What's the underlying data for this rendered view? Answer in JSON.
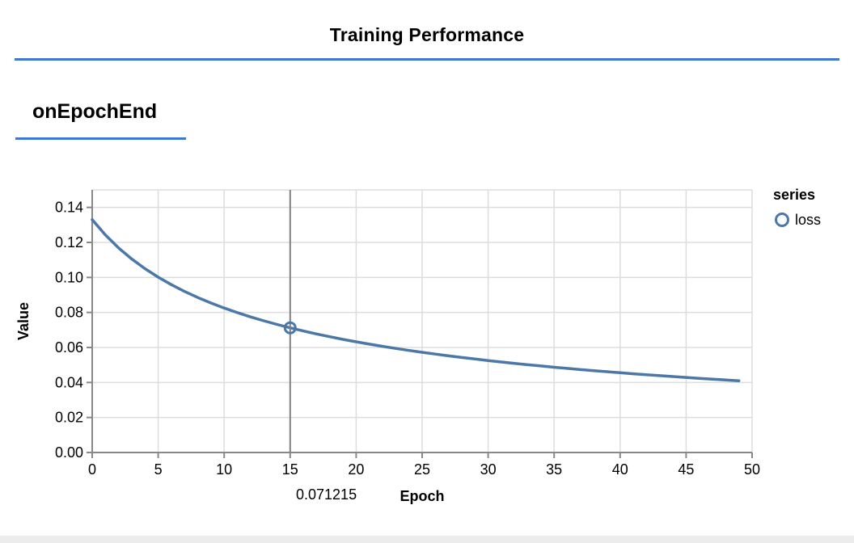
{
  "page": {
    "title": "Training Performance",
    "section_title": "onEpochEnd",
    "accent_color": "#3f76d6"
  },
  "chart_data": {
    "type": "line",
    "title": "Training Performance",
    "panel": "onEpochEnd",
    "xlabel": "Epoch",
    "ylabel": "Value",
    "xlim": [
      0,
      50
    ],
    "ylim": [
      0,
      0.15
    ],
    "x_ticks": [
      0,
      5,
      10,
      15,
      20,
      25,
      30,
      35,
      40,
      45,
      50
    ],
    "y_ticks": [
      0,
      0.02,
      0.04,
      0.06,
      0.08,
      0.1,
      0.12,
      0.14
    ],
    "grid": true,
    "legend_position": "right",
    "legend": {
      "title": "series",
      "items": [
        {
          "label": "loss",
          "color": "#4c78a8",
          "symbol": "circle-outline"
        }
      ]
    },
    "colors": {
      "line": "#4c78a8",
      "grid": "#dddddd",
      "axis": "#888888",
      "crosshair": "#808080",
      "label": "#000000"
    },
    "series": [
      {
        "name": "loss",
        "color": "#4c78a8",
        "x": [
          0,
          1,
          2,
          3,
          4,
          5,
          6,
          7,
          8,
          9,
          10,
          11,
          12,
          13,
          14,
          15,
          16,
          17,
          18,
          19,
          20,
          21,
          22,
          23,
          24,
          25,
          26,
          27,
          28,
          29,
          30,
          31,
          32,
          33,
          34,
          35,
          36,
          37,
          38,
          39,
          40,
          41,
          42,
          43,
          44,
          45,
          46,
          47,
          48,
          49
        ],
        "y": [
          0.132995,
          0.124242,
          0.116853,
          0.110512,
          0.105001,
          0.100154,
          0.095852,
          0.092002,
          0.088532,
          0.085384,
          0.082514,
          0.079883,
          0.077461,
          0.075221,
          0.073143,
          0.071215,
          0.069404,
          0.067714,
          0.066128,
          0.064635,
          0.063227,
          0.061898,
          0.060637,
          0.059443,
          0.058308,
          0.057228,
          0.056199,
          0.055216,
          0.054278,
          0.05338,
          0.05252,
          0.051695,
          0.050904,
          0.050143,
          0.049412,
          0.048707,
          0.048029,
          0.047374,
          0.046743,
          0.046132,
          0.045542,
          0.044972,
          0.04442,
          0.043885,
          0.043367,
          0.042865,
          0.042377,
          0.041904,
          0.041444,
          0.040997
        ]
      }
    ],
    "highlight": {
      "x": 15,
      "y": 0.071215,
      "label": "0.071215"
    }
  }
}
